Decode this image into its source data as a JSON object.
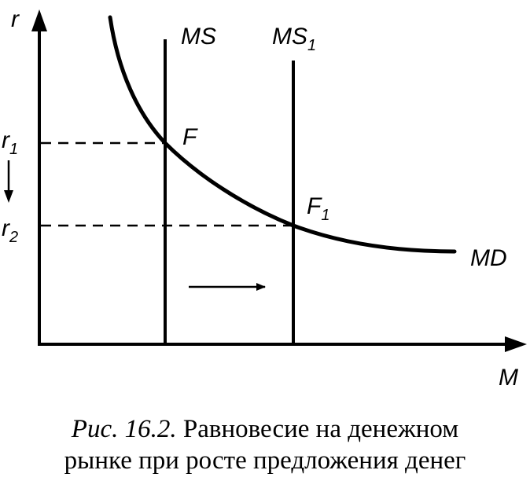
{
  "axes": {
    "y_label": "r",
    "x_label": "M"
  },
  "levels": {
    "r1": {
      "base": "r",
      "sub": "1"
    },
    "r2": {
      "base": "r",
      "sub": "2"
    }
  },
  "supply": {
    "ms": "MS",
    "ms1": {
      "base": "MS",
      "sub": "1"
    }
  },
  "demand": {
    "label": "MD"
  },
  "points": {
    "f": "F",
    "f1": {
      "base": "F",
      "sub": "1"
    }
  },
  "caption": {
    "figure": "Рис. 16.2.",
    "text_line1": "Равновесие на денежном",
    "text_line2": "рынке при росте предложения денег"
  }
}
